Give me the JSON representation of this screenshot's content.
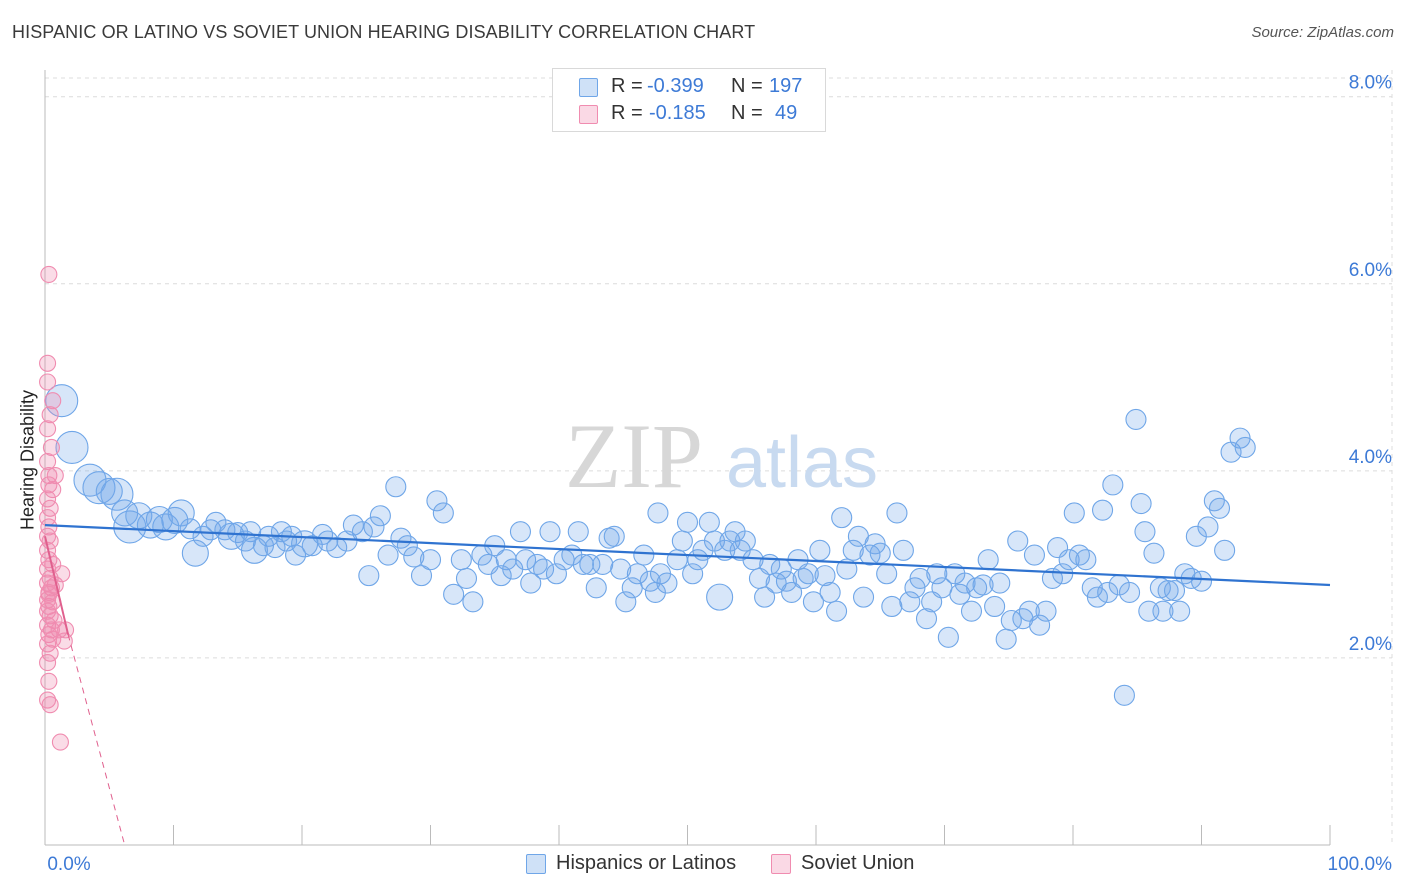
{
  "header": {
    "title": "HISPANIC OR LATINO VS SOVIET UNION HEARING DISABILITY CORRELATION CHART",
    "source": "Source: ZipAtlas.com"
  },
  "legend": {
    "rows": [
      {
        "r_label": "R =",
        "r_value": "-0.399",
        "n_label": "N =",
        "n_value": "197",
        "color": "#6fa6e8"
      },
      {
        "r_label": "R =",
        "r_value": "-0.185",
        "n_label": "N =",
        "n_value": "49",
        "color": "#f08cb0"
      }
    ]
  },
  "bottom_legend": [
    {
      "label": "Hispanics or Latinos",
      "color": "#6fa6e8"
    },
    {
      "label": "Soviet Union",
      "color": "#f08cb0"
    }
  ],
  "watermark": {
    "zip": "ZIP",
    "atlas": "atlas"
  },
  "chart_data": {
    "type": "scatter",
    "ylabel": "Hearing Disability",
    "xlim": [
      0,
      100
    ],
    "ylim": [
      0,
      8.2
    ],
    "x_tick_labels": [
      "0.0%",
      "100.0%"
    ],
    "y_tick_labels": [
      "2.0%",
      "4.0%",
      "6.0%",
      "8.0%"
    ],
    "y_ticks": [
      2,
      4,
      6,
      8
    ],
    "grid": true,
    "colors": {
      "blue": "#6fa6e8",
      "blue_line": "#2f73d0",
      "pink": "#f08cb0",
      "pink_line": "#e0608e"
    },
    "series": [
      {
        "name": "Hispanics or Latinos",
        "trend": {
          "x": [
            0,
            100
          ],
          "y": [
            3.42,
            2.78
          ]
        },
        "points": [
          [
            1.3,
            4.75,
            3
          ],
          [
            2.1,
            4.25,
            3
          ],
          [
            3.5,
            3.9,
            3
          ],
          [
            4.2,
            3.82,
            3
          ],
          [
            5.0,
            3.78,
            2
          ],
          [
            5.6,
            3.75,
            3
          ],
          [
            6.2,
            3.55,
            2
          ],
          [
            6.6,
            3.4,
            3
          ],
          [
            7.3,
            3.52,
            2
          ],
          [
            8.2,
            3.42,
            2
          ],
          [
            8.9,
            3.48,
            2
          ],
          [
            9.4,
            3.4,
            2
          ],
          [
            10.1,
            3.47,
            2
          ],
          [
            10.6,
            3.55,
            2
          ],
          [
            11.3,
            3.38,
            1
          ],
          [
            11.7,
            3.12,
            2
          ],
          [
            12.3,
            3.3,
            1
          ],
          [
            12.9,
            3.37,
            1
          ],
          [
            13.3,
            3.45,
            1
          ],
          [
            14.0,
            3.37,
            1
          ],
          [
            14.5,
            3.3,
            2
          ],
          [
            15.0,
            3.34,
            1
          ],
          [
            15.6,
            3.25,
            1
          ],
          [
            16.0,
            3.35,
            1
          ],
          [
            16.3,
            3.15,
            2
          ],
          [
            17.0,
            3.2,
            1
          ],
          [
            17.4,
            3.3,
            1
          ],
          [
            17.9,
            3.18,
            1
          ],
          [
            18.4,
            3.35,
            1
          ],
          [
            18.8,
            3.25,
            1
          ],
          [
            19.2,
            3.3,
            1
          ],
          [
            19.5,
            3.1,
            1
          ],
          [
            20.2,
            3.22,
            2
          ],
          [
            20.8,
            3.2,
            1
          ],
          [
            21.6,
            3.32,
            1
          ],
          [
            22.0,
            3.25,
            1
          ],
          [
            22.7,
            3.18,
            1
          ],
          [
            23.5,
            3.25,
            1
          ],
          [
            24.0,
            3.42,
            1
          ],
          [
            24.7,
            3.35,
            1
          ],
          [
            25.2,
            2.88,
            1
          ],
          [
            25.6,
            3.4,
            1
          ],
          [
            26.1,
            3.52,
            1
          ],
          [
            26.7,
            3.1,
            1
          ],
          [
            27.3,
            3.83,
            1
          ],
          [
            27.7,
            3.28,
            1
          ],
          [
            28.2,
            3.2,
            1
          ],
          [
            28.7,
            3.08,
            1
          ],
          [
            29.3,
            2.88,
            1
          ],
          [
            30.0,
            3.05,
            1
          ],
          [
            30.5,
            3.68,
            1
          ],
          [
            31.0,
            3.55,
            1
          ],
          [
            31.8,
            2.68,
            1
          ],
          [
            32.4,
            3.05,
            1
          ],
          [
            32.8,
            2.85,
            1
          ],
          [
            33.3,
            2.6,
            1
          ],
          [
            34.0,
            3.1,
            1
          ],
          [
            34.5,
            3.0,
            1
          ],
          [
            35.0,
            3.2,
            1
          ],
          [
            35.5,
            2.88,
            1
          ],
          [
            35.9,
            3.05,
            1
          ],
          [
            36.4,
            2.95,
            1
          ],
          [
            37.0,
            3.35,
            1
          ],
          [
            37.4,
            3.05,
            1
          ],
          [
            37.8,
            2.8,
            1
          ],
          [
            38.3,
            3.0,
            1
          ],
          [
            38.8,
            2.95,
            1
          ],
          [
            39.3,
            3.35,
            1
          ],
          [
            39.8,
            2.9,
            1
          ],
          [
            40.4,
            3.05,
            1
          ],
          [
            41.0,
            3.1,
            1
          ],
          [
            41.5,
            3.35,
            1
          ],
          [
            41.9,
            3.0,
            1
          ],
          [
            42.4,
            3.0,
            1
          ],
          [
            42.9,
            2.75,
            1
          ],
          [
            43.4,
            3.0,
            1
          ],
          [
            43.9,
            3.28,
            1
          ],
          [
            44.3,
            3.3,
            1
          ],
          [
            44.8,
            2.95,
            1
          ],
          [
            45.2,
            2.6,
            1
          ],
          [
            45.7,
            2.75,
            1
          ],
          [
            46.1,
            2.9,
            1
          ],
          [
            46.6,
            3.1,
            1
          ],
          [
            47.1,
            2.82,
            1
          ],
          [
            47.5,
            2.7,
            1
          ],
          [
            47.9,
            2.9,
            1
          ],
          [
            48.4,
            2.8,
            1
          ],
          [
            49.2,
            3.05,
            1
          ],
          [
            49.6,
            3.25,
            1
          ],
          [
            50.0,
            3.45,
            1
          ],
          [
            50.4,
            2.9,
            1
          ],
          [
            50.8,
            3.05,
            1
          ],
          [
            51.2,
            3.15,
            1
          ],
          [
            51.7,
            3.45,
            1
          ],
          [
            52.1,
            3.25,
            1
          ],
          [
            52.5,
            2.65,
            2
          ],
          [
            52.9,
            3.15,
            1
          ],
          [
            53.3,
            3.25,
            1
          ],
          [
            53.7,
            3.35,
            1
          ],
          [
            54.1,
            3.15,
            1
          ],
          [
            54.5,
            3.25,
            1
          ],
          [
            55.1,
            3.05,
            1
          ],
          [
            55.6,
            2.85,
            1
          ],
          [
            56.0,
            2.65,
            1
          ],
          [
            56.4,
            3.0,
            1
          ],
          [
            56.9,
            2.8,
            1
          ],
          [
            57.3,
            2.95,
            1
          ],
          [
            57.7,
            2.82,
            1
          ],
          [
            58.1,
            2.7,
            1
          ],
          [
            58.6,
            3.05,
            1
          ],
          [
            59.0,
            2.85,
            1
          ],
          [
            59.4,
            2.9,
            1
          ],
          [
            59.8,
            2.6,
            1
          ],
          [
            60.3,
            3.15,
            1
          ],
          [
            60.7,
            2.88,
            1
          ],
          [
            61.1,
            2.7,
            1
          ],
          [
            61.6,
            2.5,
            1
          ],
          [
            62.0,
            3.5,
            1
          ],
          [
            62.4,
            2.95,
            1
          ],
          [
            62.9,
            3.15,
            1
          ],
          [
            63.3,
            3.3,
            1
          ],
          [
            63.7,
            2.65,
            1
          ],
          [
            64.2,
            3.1,
            1
          ],
          [
            64.6,
            3.22,
            1
          ],
          [
            65.0,
            3.12,
            1
          ],
          [
            65.5,
            2.9,
            1
          ],
          [
            65.9,
            2.55,
            1
          ],
          [
            66.3,
            3.55,
            1
          ],
          [
            66.8,
            3.15,
            1
          ],
          [
            67.3,
            2.6,
            1
          ],
          [
            67.7,
            2.75,
            1
          ],
          [
            68.1,
            2.85,
            1
          ],
          [
            68.6,
            2.42,
            1
          ],
          [
            69.0,
            2.6,
            1
          ],
          [
            69.4,
            2.9,
            1
          ],
          [
            69.8,
            2.75,
            1
          ],
          [
            70.3,
            2.22,
            1
          ],
          [
            70.8,
            2.9,
            1
          ],
          [
            71.2,
            2.68,
            1
          ],
          [
            71.6,
            2.8,
            1
          ],
          [
            72.1,
            2.5,
            1
          ],
          [
            72.5,
            2.75,
            1
          ],
          [
            73.0,
            2.78,
            1
          ],
          [
            73.4,
            3.05,
            1
          ],
          [
            73.9,
            2.55,
            1
          ],
          [
            74.3,
            2.8,
            1
          ],
          [
            74.8,
            2.2,
            1
          ],
          [
            75.2,
            2.4,
            1
          ],
          [
            75.7,
            3.25,
            1
          ],
          [
            76.1,
            2.42,
            1
          ],
          [
            76.6,
            2.5,
            1
          ],
          [
            77.0,
            3.1,
            1
          ],
          [
            77.4,
            2.35,
            1
          ],
          [
            77.9,
            2.5,
            1
          ],
          [
            78.4,
            2.85,
            1
          ],
          [
            78.8,
            3.18,
            1
          ],
          [
            79.2,
            2.9,
            1
          ],
          [
            79.7,
            3.05,
            1
          ],
          [
            80.1,
            3.55,
            1
          ],
          [
            80.5,
            3.1,
            1
          ],
          [
            81.0,
            3.05,
            1
          ],
          [
            81.5,
            2.75,
            1
          ],
          [
            81.9,
            2.65,
            1
          ],
          [
            82.3,
            3.58,
            1
          ],
          [
            82.7,
            2.7,
            1
          ],
          [
            83.1,
            3.85,
            1
          ],
          [
            83.6,
            2.78,
            1
          ],
          [
            84.0,
            1.6,
            1
          ],
          [
            84.4,
            2.7,
            1
          ],
          [
            84.9,
            4.55,
            1
          ],
          [
            85.3,
            3.65,
            1
          ],
          [
            85.6,
            3.35,
            1
          ],
          [
            85.9,
            2.5,
            1
          ],
          [
            86.3,
            3.12,
            1
          ],
          [
            86.8,
            2.75,
            1
          ],
          [
            87.0,
            2.5,
            1
          ],
          [
            87.4,
            2.72,
            1
          ],
          [
            87.9,
            2.72,
            1
          ],
          [
            88.3,
            2.5,
            1
          ],
          [
            88.7,
            2.9,
            1
          ],
          [
            89.2,
            2.85,
            1
          ],
          [
            89.6,
            3.3,
            1
          ],
          [
            90.0,
            2.82,
            1
          ],
          [
            90.5,
            3.4,
            1
          ],
          [
            91.0,
            3.68,
            1
          ],
          [
            91.4,
            3.6,
            1
          ],
          [
            91.8,
            3.15,
            1
          ],
          [
            92.3,
            4.2,
            1
          ],
          [
            93.0,
            4.35,
            1
          ],
          [
            93.4,
            4.25,
            1
          ],
          [
            47.7,
            3.55,
            1
          ]
        ]
      },
      {
        "name": "Soviet Union",
        "trend": {
          "x": [
            0,
            1.8
          ],
          "y": [
            3.3,
            2.25
          ]
        },
        "trend_extension": {
          "x": [
            1.8,
            6.2
          ],
          "y": [
            2.25,
            0
          ]
        },
        "points": [
          [
            0.3,
            6.1
          ],
          [
            0.2,
            5.15
          ],
          [
            0.2,
            4.95
          ],
          [
            0.6,
            4.75
          ],
          [
            0.4,
            4.6
          ],
          [
            0.2,
            4.45
          ],
          [
            0.5,
            4.25
          ],
          [
            0.2,
            4.1
          ],
          [
            0.3,
            3.95
          ],
          [
            0.8,
            3.95
          ],
          [
            0.3,
            3.85
          ],
          [
            0.6,
            3.8
          ],
          [
            0.2,
            3.7
          ],
          [
            0.4,
            3.6
          ],
          [
            0.2,
            3.5
          ],
          [
            0.3,
            3.4
          ],
          [
            0.2,
            3.3
          ],
          [
            0.4,
            3.25
          ],
          [
            0.2,
            3.15
          ],
          [
            0.3,
            3.05
          ],
          [
            0.6,
            3.0
          ],
          [
            0.2,
            2.95
          ],
          [
            1.3,
            2.9
          ],
          [
            0.4,
            2.85
          ],
          [
            0.2,
            2.8
          ],
          [
            0.5,
            2.75
          ],
          [
            0.8,
            2.78
          ],
          [
            0.3,
            2.7
          ],
          [
            0.2,
            2.62
          ],
          [
            0.6,
            2.6
          ],
          [
            0.3,
            2.55
          ],
          [
            0.2,
            2.5
          ],
          [
            0.4,
            2.45
          ],
          [
            0.7,
            2.4
          ],
          [
            0.2,
            2.35
          ],
          [
            0.5,
            2.3
          ],
          [
            1.1,
            2.3
          ],
          [
            1.6,
            2.3
          ],
          [
            0.3,
            2.25
          ],
          [
            0.6,
            2.2
          ],
          [
            0.2,
            2.15
          ],
          [
            1.5,
            2.18
          ],
          [
            0.4,
            2.05
          ],
          [
            0.2,
            1.95
          ],
          [
            0.3,
            1.75
          ],
          [
            0.2,
            1.55
          ],
          [
            0.4,
            1.5
          ],
          [
            1.2,
            1.1
          ],
          [
            0.3,
            2.68
          ]
        ]
      }
    ]
  }
}
